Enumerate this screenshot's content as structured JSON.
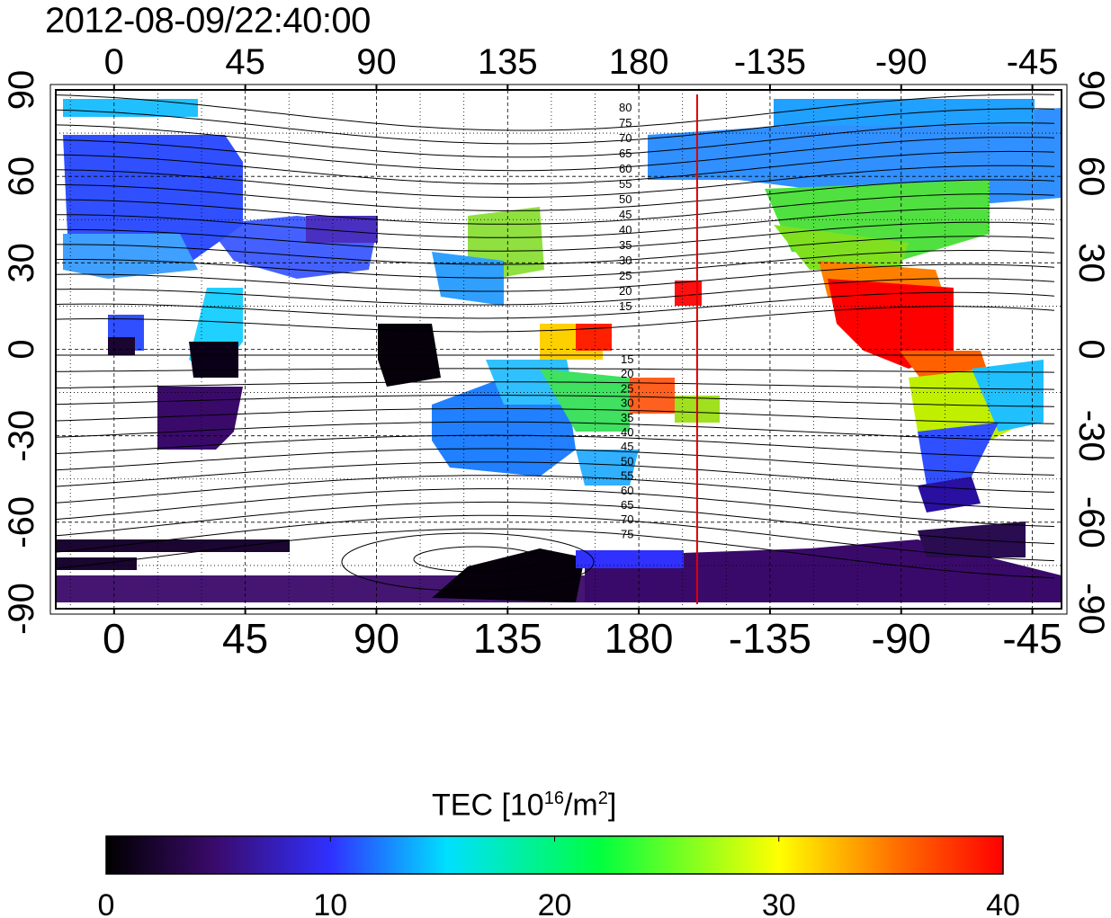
{
  "timestamp": "2012-08-09/22:40:00",
  "map": {
    "top_lon_labels": [
      "0",
      "45",
      "90",
      "135",
      "180",
      "-135",
      "-90",
      "-45"
    ],
    "bottom_lon_labels": [
      "0",
      "45",
      "90",
      "135",
      "180",
      "-135",
      "-90",
      "-45"
    ],
    "left_lat_labels": [
      "90",
      "60",
      "30",
      "0",
      "-30",
      "-60",
      "-90"
    ],
    "right_lat_labels": [
      "90",
      "60",
      "30",
      "0",
      "-30",
      "-60",
      "-90"
    ],
    "lon_ticks": [
      0,
      45,
      90,
      135,
      180,
      225,
      270,
      315
    ],
    "lat_ticks": [
      90,
      60,
      30,
      0,
      -30,
      -60,
      -90
    ],
    "lon_range": [
      -20,
      325
    ],
    "lat_range": [
      -90,
      90
    ],
    "terminator_lon": 200,
    "terminator_color": "#e00000",
    "north_contour_labels": [
      "80",
      "75",
      "70",
      "65",
      "60",
      "55",
      "50",
      "45",
      "40",
      "35",
      "30",
      "25",
      "20",
      "15"
    ],
    "south_contour_labels": [
      "15",
      "20",
      "25",
      "30",
      "35",
      "40",
      "45",
      "50",
      "55",
      "60",
      "65",
      "70",
      "75"
    ]
  },
  "colorbar": {
    "title_text": "TEC  [10",
    "title_sup1": "16",
    "title_mid": "/m",
    "title_sup2": "2",
    "title_end": "]",
    "tick_labels": [
      "0",
      "10",
      "20",
      "30",
      "40"
    ],
    "range": [
      0,
      40
    ],
    "colors": [
      "#000000",
      "#3a0a6a",
      "#3030ff",
      "#00e0ff",
      "#00ff40",
      "#ffff00",
      "#ff7000",
      "#ff0000"
    ]
  }
}
